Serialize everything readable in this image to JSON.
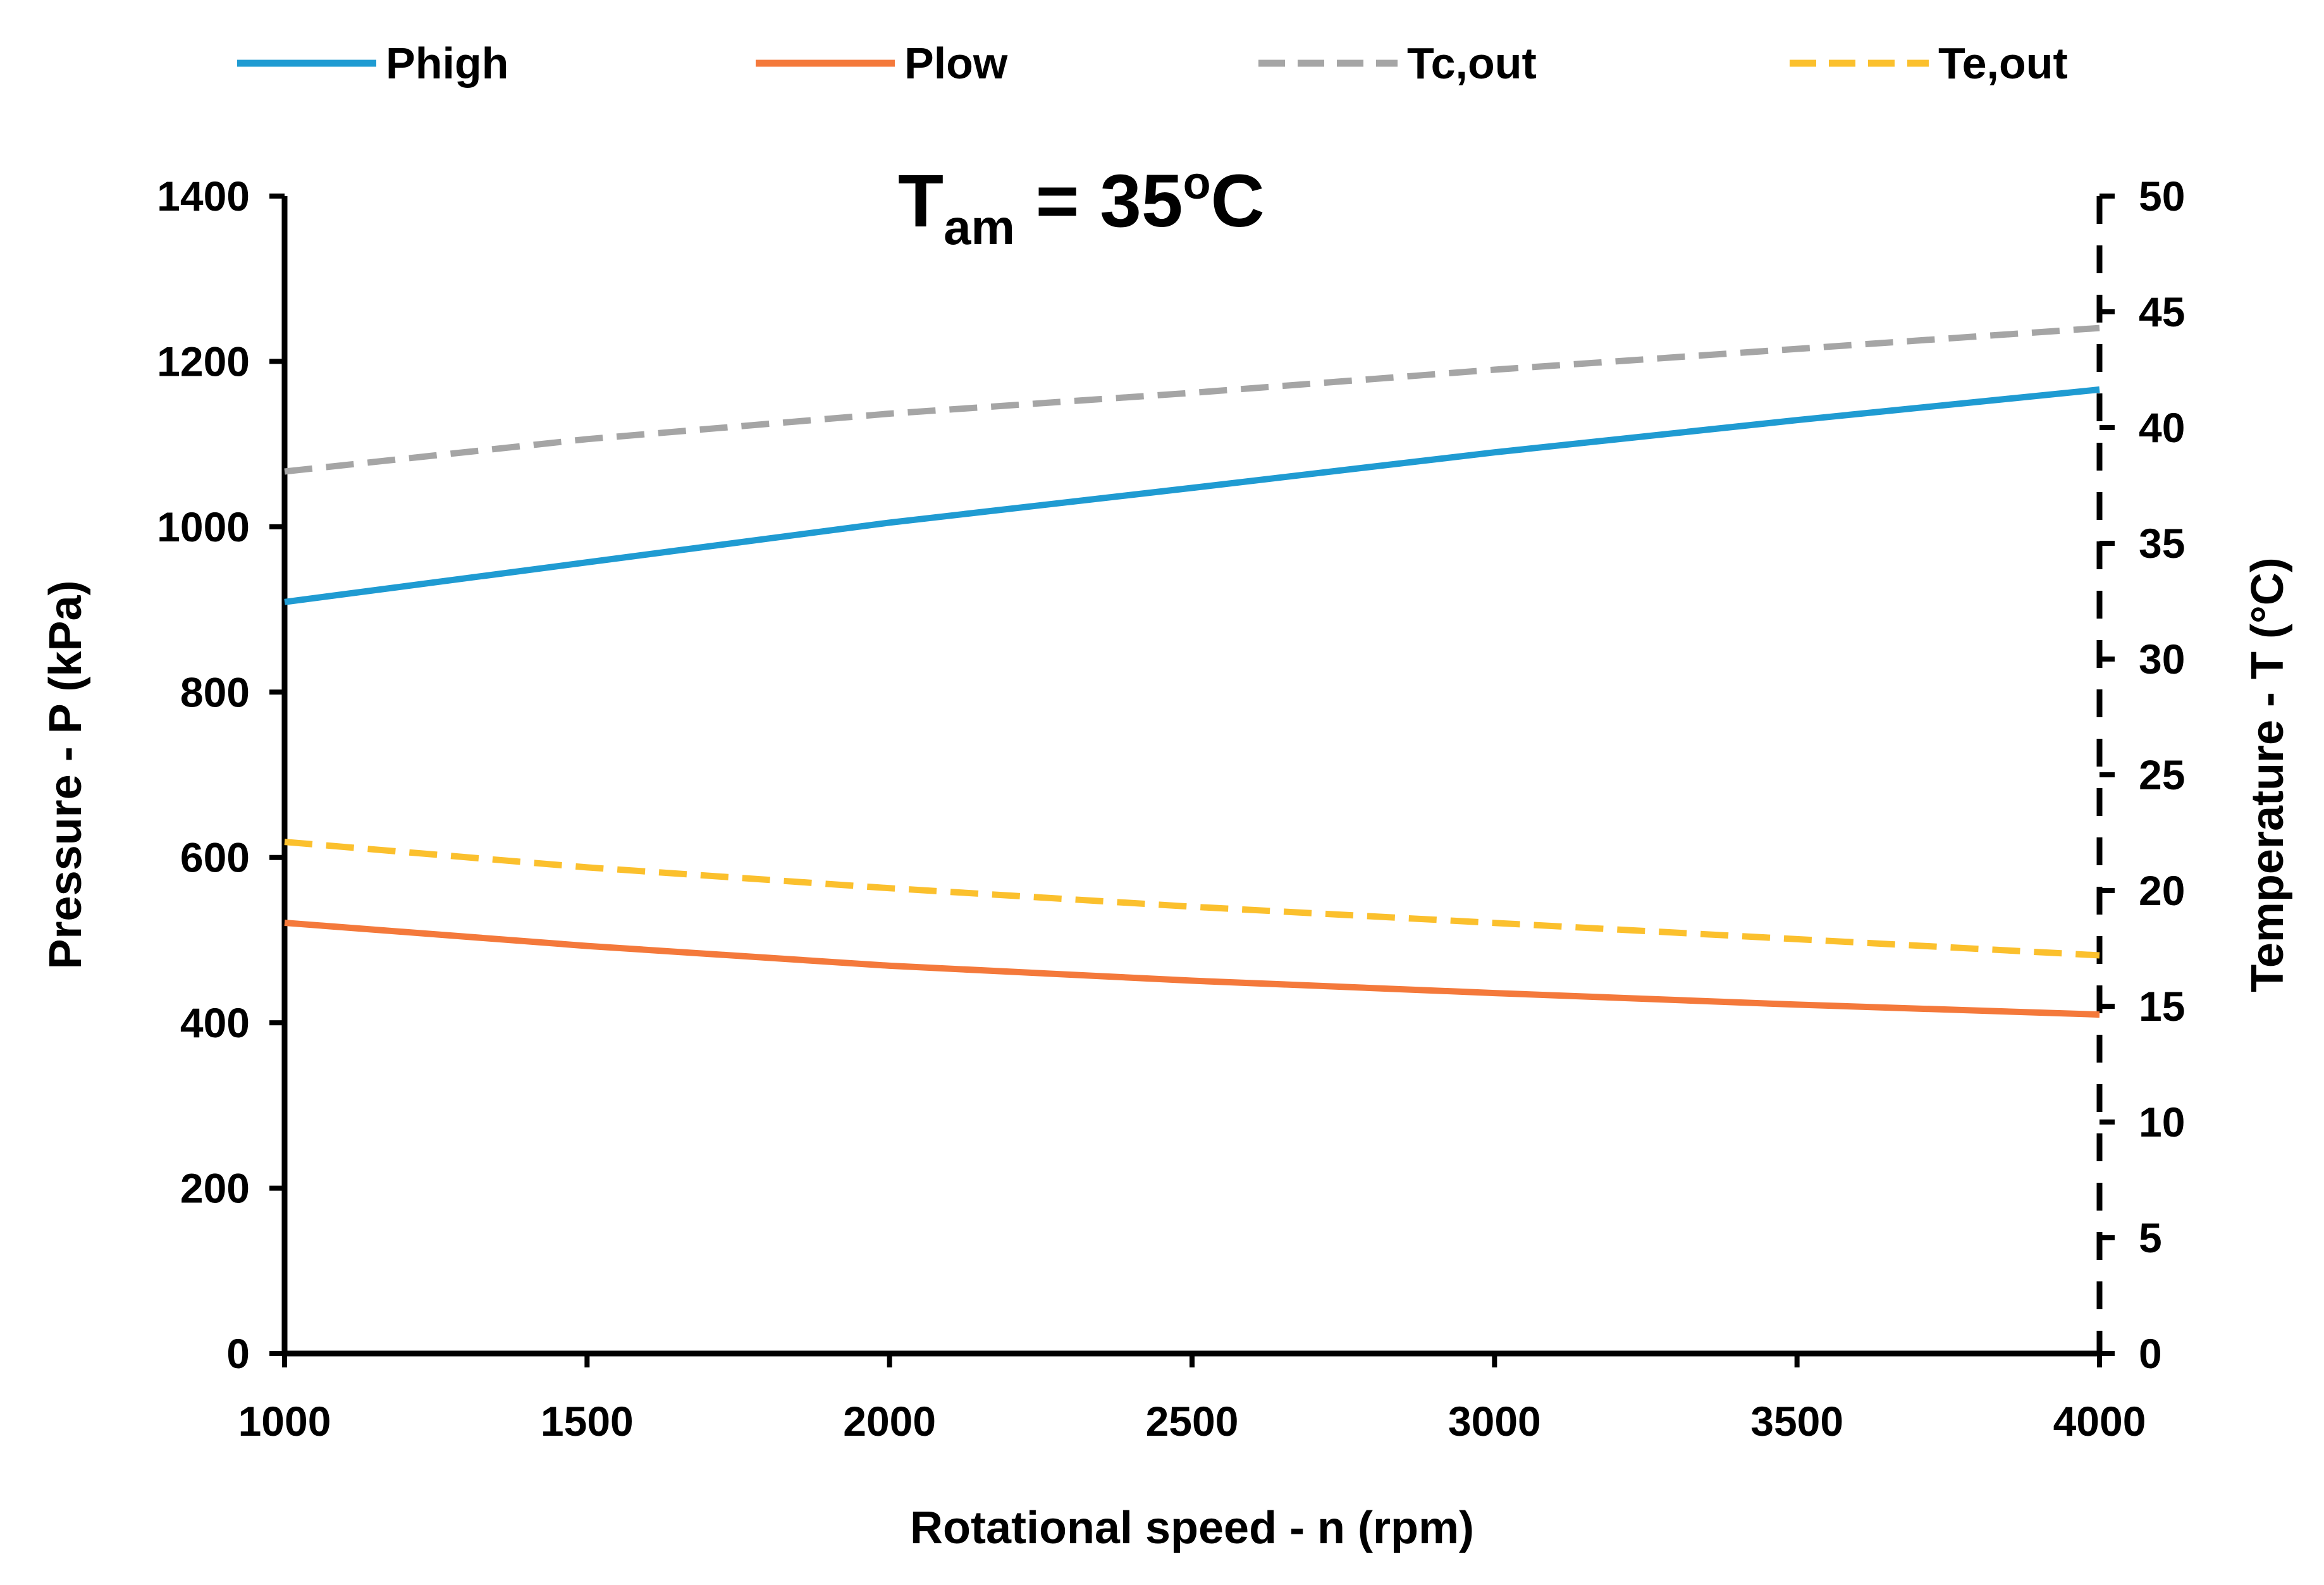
{
  "chart_data": {
    "type": "line",
    "title": "",
    "annotation": {
      "main": "T",
      "sub": "am",
      "equals": " = 35",
      "sup": "o",
      "unit": "C"
    },
    "xlabel": "Rotational speed - n (rpm)",
    "ylabel": "Pressure - P (kPa)",
    "y2label": "Temperature - T (°C)",
    "xlim": [
      1000,
      4000
    ],
    "ylim": [
      0,
      1400
    ],
    "y2lim": [
      0,
      50
    ],
    "xticks": [
      1000,
      1500,
      2000,
      2500,
      3000,
      3500,
      4000
    ],
    "yticks": [
      0,
      200,
      400,
      600,
      800,
      1000,
      1200,
      1400
    ],
    "y2ticks": [
      0,
      5,
      10,
      15,
      20,
      25,
      30,
      35,
      40,
      45,
      50
    ],
    "grid": false,
    "legend_position": "top",
    "x": [
      1000,
      1500,
      2000,
      2500,
      3000,
      3500,
      4000
    ],
    "series": [
      {
        "name": "Phigh",
        "axis": "left",
        "color": "#1f9bd2",
        "dash": "solid",
        "values": [
          909,
          957,
          1005,
          1047,
          1090,
          1129,
          1166
        ]
      },
      {
        "name": "Plow",
        "axis": "left",
        "color": "#f4793b",
        "dash": "solid",
        "values": [
          521,
          493,
          469,
          451,
          436,
          422,
          410
        ]
      },
      {
        "name": "Tc,out",
        "axis": "right",
        "color": "#a5a5a5",
        "dash": "dashed",
        "values": [
          38.1,
          39.5,
          40.6,
          41.5,
          42.5,
          43.4,
          44.3
        ]
      },
      {
        "name": "Te,out",
        "axis": "right",
        "color": "#fbc02d",
        "dash": "dashed",
        "values": [
          22.1,
          21.0,
          20.1,
          19.3,
          18.6,
          17.9,
          17.2
        ]
      }
    ]
  }
}
